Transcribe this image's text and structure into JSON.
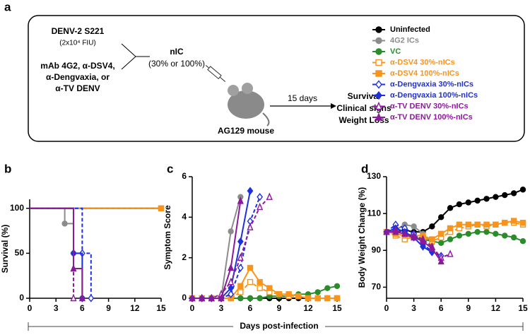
{
  "schematic": {
    "panel_label": "a",
    "virus": "DENV-2 S221",
    "dose": "(2x10⁴ FIU)",
    "antibodies": [
      "mAb 4G2, α-DSV4,",
      "α-Dengvaxia, or",
      "α-TV DENV"
    ],
    "complex": "nIC",
    "complex_note": "(30% or 100%)",
    "mouse": "AG129 mouse",
    "duration": "15 days",
    "readouts": [
      "Survival",
      "Clinical signs",
      "Weight Loss"
    ]
  },
  "legend": [
    {
      "name": "Uninfected",
      "color": "#000000",
      "marker": "circle",
      "filled": true,
      "dashed": false
    },
    {
      "name": "4G2 ICs",
      "color": "#8c8c8c",
      "marker": "circle",
      "filled": true,
      "dashed": false
    },
    {
      "name": "VC",
      "color": "#2a8c2a",
      "marker": "circle",
      "filled": true,
      "dashed": false
    },
    {
      "name": "α-DSV4 30%-nICs",
      "color": "#f7941d",
      "marker": "square",
      "filled": false,
      "dashed": true
    },
    {
      "name": "α-DSV4 100%-nICs",
      "color": "#f7941d",
      "marker": "square",
      "filled": true,
      "dashed": false
    },
    {
      "name": "α-Dengvaxia 30%-nICs",
      "color": "#1f2fe0",
      "marker": "diamond",
      "filled": false,
      "dashed": true
    },
    {
      "name": "α-Dengvaxia 100%-nICs",
      "color": "#1f2fe0",
      "marker": "diamond",
      "filled": true,
      "dashed": false
    },
    {
      "name": "α-TV DENV 30%-nICs",
      "color": "#8b1a9b",
      "marker": "triangle",
      "filled": false,
      "dashed": true
    },
    {
      "name": "α-TV DENV 100%-nICs",
      "color": "#8b1a9b",
      "marker": "triangle",
      "filled": true,
      "dashed": false
    }
  ],
  "x_label": "Days post-infection",
  "chart_data": [
    {
      "type": "step",
      "panel_label": "b",
      "y_label": "Survival (%)",
      "xlim": [
        0,
        15
      ],
      "xticks": [
        0,
        3,
        6,
        9,
        12,
        15
      ],
      "ylim": [
        0,
        110
      ],
      "yticks": [
        0,
        50,
        100
      ],
      "series": [
        {
          "x": [
            0,
            15
          ],
          "values": [
            100,
            100
          ]
        },
        {
          "x": [
            0,
            4,
            5,
            6
          ],
          "values": [
            100,
            83,
            50,
            0
          ]
        },
        {
          "x": [
            0,
            15
          ],
          "values": [
            100,
            100
          ]
        },
        {
          "x": [
            0,
            15
          ],
          "values": [
            100,
            100
          ]
        },
        {
          "x": [
            0,
            15
          ],
          "values": [
            100,
            100
          ]
        },
        {
          "x": [
            0,
            6,
            7
          ],
          "values": [
            100,
            50,
            0
          ]
        },
        {
          "x": [
            0,
            5,
            6
          ],
          "values": [
            100,
            50,
            0
          ]
        },
        {
          "x": [
            0,
            5
          ],
          "values": [
            100,
            0
          ]
        },
        {
          "x": [
            0,
            5,
            6
          ],
          "values": [
            100,
            33,
            0
          ]
        }
      ]
    },
    {
      "type": "line",
      "panel_label": "c",
      "y_label": "Symptom Score",
      "xlim": [
        0,
        15
      ],
      "xticks": [
        0,
        3,
        6,
        9,
        12,
        15
      ],
      "ylim": [
        0,
        6
      ],
      "yticks": [
        0,
        2,
        4,
        6
      ],
      "series": [
        {
          "x": [
            0,
            1,
            2,
            3,
            4,
            5,
            6,
            7,
            8,
            9,
            10,
            11,
            12,
            13,
            14,
            15
          ],
          "values": [
            0,
            0,
            0,
            0,
            0,
            0,
            0,
            0,
            0,
            0,
            0,
            0,
            0,
            0,
            0,
            0
          ]
        },
        {
          "x": [
            0,
            1,
            2,
            3,
            4,
            5
          ],
          "values": [
            0,
            0,
            0,
            0,
            3.3,
            5
          ]
        },
        {
          "x": [
            0,
            1,
            2,
            3,
            4,
            5,
            6,
            7,
            8,
            9,
            10,
            11,
            12,
            13,
            14,
            15
          ],
          "values": [
            0,
            0,
            0,
            0,
            0,
            0,
            0,
            0,
            0.1,
            0.1,
            0.1,
            0.2,
            0.2,
            0.3,
            0.5,
            0.6
          ]
        },
        {
          "x": [
            0,
            1,
            2,
            3,
            4,
            5,
            6,
            7,
            8,
            9,
            10,
            11,
            12,
            13,
            14,
            15
          ],
          "values": [
            0,
            0,
            0,
            0,
            0,
            0.3,
            0.8,
            0.5,
            0.3,
            0.2,
            0.1,
            0.1,
            0,
            0,
            0,
            0
          ]
        },
        {
          "x": [
            0,
            1,
            2,
            3,
            4,
            5,
            6,
            7,
            8,
            9,
            10,
            11,
            12,
            13,
            14,
            15
          ],
          "values": [
            0,
            0,
            0,
            0,
            0,
            0.6,
            1.5,
            0.8,
            0.5,
            0.2,
            0.2,
            0.1,
            0,
            0,
            0,
            0
          ]
        },
        {
          "x": [
            0,
            1,
            2,
            3,
            4,
            5,
            6,
            7
          ],
          "values": [
            0,
            0,
            0,
            0,
            0.2,
            1.5,
            3.8,
            5
          ]
        },
        {
          "x": [
            0,
            1,
            2,
            3,
            4,
            5,
            6
          ],
          "values": [
            0,
            0,
            0,
            0,
            0.5,
            2.8,
            5.3
          ]
        },
        {
          "x": [
            0,
            1,
            2,
            3,
            4,
            5,
            6,
            7,
            8
          ],
          "values": [
            0,
            0,
            0,
            0.2,
            0.8,
            2,
            3.5,
            4.5,
            5
          ]
        },
        {
          "x": [
            0,
            1,
            2,
            3,
            4,
            5
          ],
          "values": [
            0,
            0,
            0,
            0,
            1.5,
            4.8
          ]
        }
      ]
    },
    {
      "type": "line",
      "panel_label": "d",
      "y_label": "Body Weight Change (%)",
      "xlim": [
        0,
        15
      ],
      "xticks": [
        0,
        3,
        6,
        9,
        12,
        15
      ],
      "ylim": [
        64,
        130
      ],
      "yticks": [
        70,
        90,
        110,
        130
      ],
      "series": [
        {
          "x": [
            0,
            1,
            2,
            3,
            4,
            5,
            6,
            7,
            8,
            9,
            10,
            11,
            12,
            13,
            14,
            15
          ],
          "values": [
            100,
            100,
            101,
            100,
            100,
            103,
            108,
            113,
            115,
            116,
            117,
            118,
            119,
            120,
            121,
            123
          ]
        },
        {
          "x": [
            0,
            1,
            2,
            3,
            4,
            5
          ],
          "values": [
            100,
            101,
            104,
            103,
            99,
            94
          ]
        },
        {
          "x": [
            0,
            1,
            2,
            3,
            4,
            5,
            6,
            7,
            8,
            9,
            10,
            11,
            12,
            13,
            14,
            15
          ],
          "values": [
            100,
            99,
            98,
            97,
            96,
            95,
            94,
            96,
            98,
            99,
            100,
            100,
            99,
            98,
            97,
            95
          ]
        },
        {
          "x": [
            0,
            1,
            2,
            3,
            4,
            5,
            6,
            7,
            8,
            9,
            10,
            11,
            12,
            13,
            14,
            15
          ],
          "values": [
            100,
            98,
            96,
            97,
            97,
            95,
            97,
            100,
            102,
            103,
            104,
            103,
            104,
            105,
            105,
            104
          ]
        },
        {
          "x": [
            0,
            1,
            2,
            3,
            4,
            5,
            6,
            7,
            8,
            9,
            10,
            11,
            12,
            13,
            14,
            15
          ],
          "values": [
            100,
            99,
            98,
            98,
            98,
            96,
            99,
            102,
            104,
            104,
            104,
            104,
            104,
            105,
            106,
            105
          ]
        },
        {
          "x": [
            0,
            1,
            2,
            3,
            4,
            5,
            6
          ],
          "values": [
            100,
            104,
            102,
            99,
            94,
            89,
            87
          ]
        },
        {
          "x": [
            0,
            1,
            2,
            3,
            4,
            5
          ],
          "values": [
            100,
            102,
            100,
            97,
            92,
            89
          ]
        },
        {
          "x": [
            0,
            1,
            2,
            3,
            4,
            5,
            6,
            7
          ],
          "values": [
            100,
            101,
            99,
            98,
            96,
            92,
            86,
            88
          ]
        },
        {
          "x": [
            0,
            1,
            2,
            3,
            4,
            5,
            6
          ],
          "values": [
            100,
            100,
            99,
            97,
            95,
            91,
            84
          ]
        }
      ]
    }
  ]
}
